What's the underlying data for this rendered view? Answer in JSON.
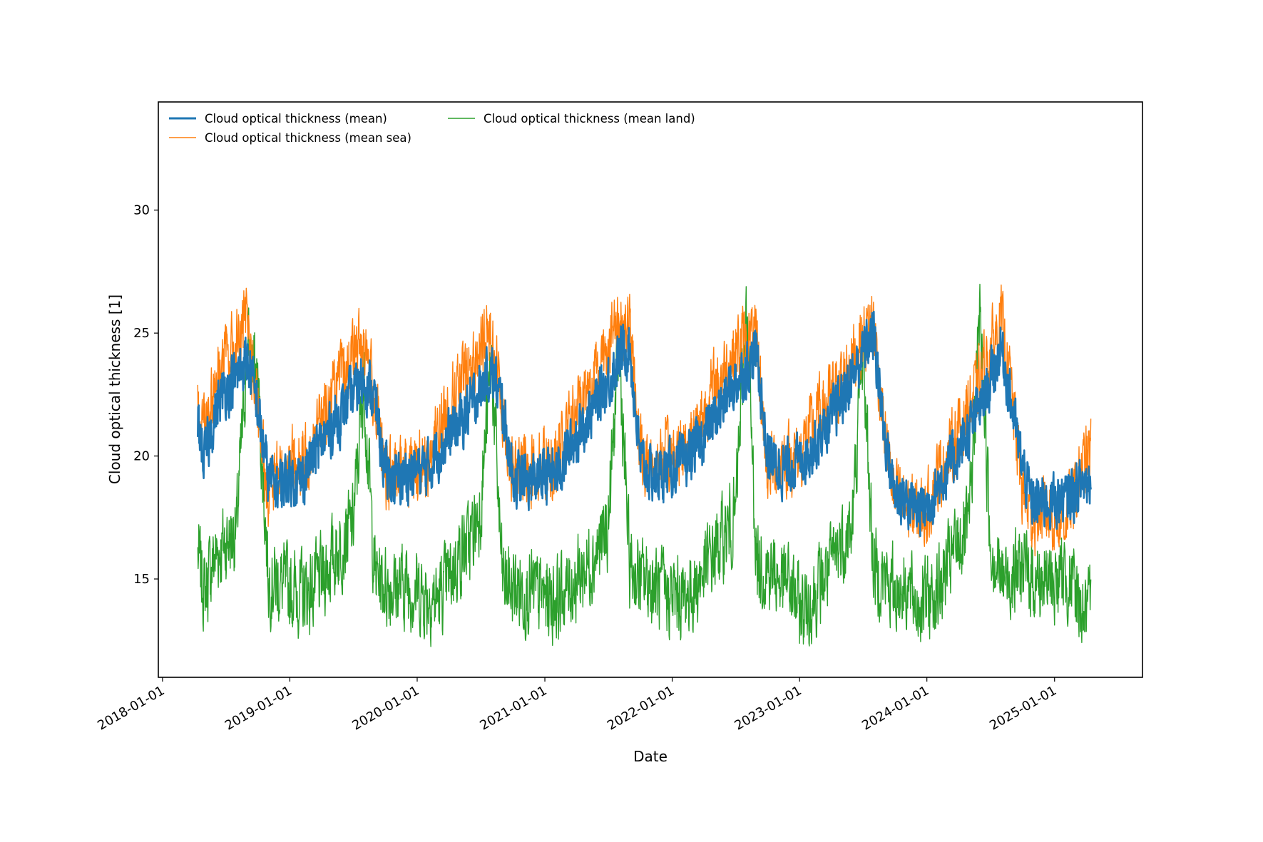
{
  "chart_data": {
    "type": "line",
    "title": "",
    "xlabel": "Date",
    "ylabel": "Cloud optical thickness [1]",
    "x_range": [
      "2017-12-20",
      "2025-09-10"
    ],
    "x_data_range": [
      "2018-04-12",
      "2025-04-15"
    ],
    "ylim": [
      11.0,
      34.4
    ],
    "x_tick_labels": [
      "2018-01-01",
      "2019-01-01",
      "2020-01-01",
      "2021-01-01",
      "2022-01-01",
      "2023-01-01",
      "2024-01-01",
      "2025-01-01"
    ],
    "y_ticks": [
      15,
      20,
      25,
      30
    ],
    "grid": false,
    "legend_position": "top-left",
    "legend": [
      {
        "label": "Cloud optical thickness (mean)",
        "color": "#1f77b4"
      },
      {
        "label": "Cloud optical thickness (mean sea)",
        "color": "#ff7f0e"
      },
      {
        "label": "Cloud optical thickness (mean land)",
        "color": "#2ca02c"
      }
    ],
    "series": [
      {
        "name": "Cloud optical thickness (mean)",
        "color": "#1f77b4",
        "x": [
          "2018-04-12",
          "2018-05-01",
          "2018-06-01",
          "2018-07-01",
          "2018-08-01",
          "2018-09-01",
          "2018-10-01",
          "2018-11-01",
          "2018-12-01",
          "2019-01-01",
          "2019-02-01",
          "2019-03-01",
          "2019-04-01",
          "2019-05-01",
          "2019-06-01",
          "2019-07-01",
          "2019-08-01",
          "2019-09-01",
          "2019-10-01",
          "2019-11-01",
          "2019-12-01",
          "2020-01-01",
          "2020-02-01",
          "2020-03-01",
          "2020-04-01",
          "2020-05-01",
          "2020-06-01",
          "2020-07-01",
          "2020-08-01",
          "2020-09-01",
          "2020-10-01",
          "2020-11-01",
          "2020-12-01",
          "2021-01-01",
          "2021-02-01",
          "2021-03-01",
          "2021-04-01",
          "2021-05-01",
          "2021-06-01",
          "2021-07-01",
          "2021-08-01",
          "2021-09-01",
          "2021-10-01",
          "2021-11-01",
          "2021-12-01",
          "2022-01-01",
          "2022-02-01",
          "2022-03-01",
          "2022-04-01",
          "2022-05-01",
          "2022-06-01",
          "2022-07-01",
          "2022-08-01",
          "2022-09-01",
          "2022-10-01",
          "2022-11-01",
          "2022-12-01",
          "2023-01-01",
          "2023-02-01",
          "2023-03-01",
          "2023-04-01",
          "2023-05-01",
          "2023-06-01",
          "2023-07-01",
          "2023-08-01",
          "2023-09-01",
          "2023-10-01",
          "2023-11-01",
          "2023-12-01",
          "2024-01-01",
          "2024-02-01",
          "2024-03-01",
          "2024-04-01",
          "2024-05-01",
          "2024-06-01",
          "2024-07-01",
          "2024-08-01",
          "2024-09-01",
          "2024-10-01",
          "2024-11-01",
          "2024-12-01",
          "2025-01-01",
          "2025-02-01",
          "2025-03-01",
          "2025-04-01",
          "2025-04-15"
        ],
        "y": [
          21.5,
          19.8,
          21.8,
          22.8,
          23.2,
          24.0,
          22.0,
          19.0,
          18.8,
          19.2,
          19.0,
          19.8,
          20.5,
          21.2,
          21.8,
          22.5,
          23.2,
          22.3,
          19.3,
          19.0,
          19.2,
          19.4,
          19.5,
          20.2,
          20.8,
          21.3,
          22.0,
          22.8,
          23.5,
          22.0,
          19.2,
          19.0,
          19.0,
          19.2,
          19.3,
          20.0,
          20.8,
          21.5,
          22.3,
          23.0,
          24.0,
          24.5,
          19.8,
          19.2,
          19.3,
          19.5,
          19.6,
          20.2,
          20.8,
          21.5,
          22.3,
          23.0,
          23.5,
          24.2,
          20.0,
          19.5,
          19.6,
          19.8,
          20.3,
          20.8,
          21.5,
          22.3,
          23.2,
          24.2,
          25.0,
          21.0,
          18.5,
          18.2,
          17.8,
          18.0,
          18.8,
          19.5,
          20.2,
          21.0,
          22.0,
          23.0,
          24.5,
          22.0,
          19.5,
          18.0,
          18.2,
          18.2,
          18.2,
          18.6,
          19.0,
          19.2
        ]
      },
      {
        "name": "Cloud optical thickness (mean sea)",
        "color": "#ff7f0e",
        "x": [
          "2018-04-12",
          "2018-05-01",
          "2018-06-01",
          "2018-07-01",
          "2018-08-01",
          "2018-09-01",
          "2018-10-01",
          "2018-11-01",
          "2018-12-01",
          "2019-01-01",
          "2019-02-01",
          "2019-03-01",
          "2019-04-01",
          "2019-05-01",
          "2019-06-01",
          "2019-07-01",
          "2019-08-01",
          "2019-09-01",
          "2019-10-01",
          "2019-11-01",
          "2019-12-01",
          "2020-01-01",
          "2020-02-01",
          "2020-03-01",
          "2020-04-01",
          "2020-05-01",
          "2020-06-01",
          "2020-07-01",
          "2020-08-01",
          "2020-09-01",
          "2020-10-01",
          "2020-11-01",
          "2020-12-01",
          "2021-01-01",
          "2021-02-01",
          "2021-03-01",
          "2021-04-01",
          "2021-05-01",
          "2021-06-01",
          "2021-07-01",
          "2021-08-01",
          "2021-09-01",
          "2021-10-01",
          "2021-11-01",
          "2021-12-01",
          "2022-01-01",
          "2022-02-01",
          "2022-03-01",
          "2022-04-01",
          "2022-05-01",
          "2022-06-01",
          "2022-07-01",
          "2022-08-01",
          "2022-09-01",
          "2022-10-01",
          "2022-11-01",
          "2022-12-01",
          "2023-01-01",
          "2023-02-01",
          "2023-03-01",
          "2023-04-01",
          "2023-05-01",
          "2023-06-01",
          "2023-07-01",
          "2023-08-01",
          "2023-09-01",
          "2023-10-01",
          "2023-11-01",
          "2023-12-01",
          "2024-01-01",
          "2024-02-01",
          "2024-03-01",
          "2024-04-01",
          "2024-05-01",
          "2024-06-01",
          "2024-07-01",
          "2024-08-01",
          "2024-09-01",
          "2024-10-01",
          "2024-11-01",
          "2024-12-01",
          "2025-01-01",
          "2025-02-01",
          "2025-03-01",
          "2025-04-01",
          "2025-04-15"
        ],
        "y": [
          22.0,
          21.5,
          23.0,
          24.0,
          24.5,
          25.5,
          21.5,
          18.5,
          19.3,
          19.8,
          19.5,
          20.5,
          21.5,
          22.5,
          23.2,
          24.0,
          24.8,
          22.5,
          19.0,
          19.3,
          19.6,
          19.7,
          19.8,
          21.0,
          22.0,
          22.8,
          23.5,
          24.3,
          25.0,
          22.0,
          19.3,
          19.5,
          19.6,
          19.8,
          19.8,
          20.8,
          21.8,
          22.8,
          23.5,
          24.5,
          25.5,
          25.2,
          20.0,
          19.7,
          19.8,
          20.0,
          20.2,
          21.0,
          21.8,
          22.8,
          23.5,
          24.3,
          24.8,
          24.5,
          19.5,
          19.8,
          19.9,
          20.0,
          21.0,
          21.8,
          22.3,
          23.0,
          24.0,
          24.8,
          25.5,
          21.0,
          18.3,
          18.0,
          17.5,
          17.8,
          19.2,
          20.0,
          21.0,
          22.0,
          23.0,
          24.3,
          25.5,
          22.5,
          18.5,
          17.5,
          17.8,
          17.5,
          17.5,
          18.5,
          19.8,
          20.3
        ]
      },
      {
        "name": "Cloud optical thickness (mean land)",
        "color": "#2ca02c",
        "x": [
          "2018-04-12",
          "2018-05-01",
          "2018-06-01",
          "2018-07-01",
          "2018-08-01",
          "2018-09-01",
          "2018-10-01",
          "2018-11-01",
          "2018-12-01",
          "2019-01-01",
          "2019-02-01",
          "2019-03-01",
          "2019-04-01",
          "2019-05-01",
          "2019-06-01",
          "2019-07-01",
          "2019-08-01",
          "2019-09-01",
          "2019-10-01",
          "2019-11-01",
          "2019-12-01",
          "2020-01-01",
          "2020-02-01",
          "2020-03-01",
          "2020-04-01",
          "2020-05-01",
          "2020-06-01",
          "2020-07-01",
          "2020-08-01",
          "2020-09-01",
          "2020-10-01",
          "2020-11-01",
          "2020-12-01",
          "2021-01-01",
          "2021-02-01",
          "2021-03-01",
          "2021-04-01",
          "2021-05-01",
          "2021-06-01",
          "2021-07-01",
          "2021-08-01",
          "2021-09-01",
          "2021-10-01",
          "2021-11-01",
          "2021-12-01",
          "2022-01-01",
          "2022-02-01",
          "2022-03-01",
          "2022-04-01",
          "2022-05-01",
          "2022-06-01",
          "2022-07-01",
          "2022-08-01",
          "2022-09-01",
          "2022-10-01",
          "2022-11-01",
          "2022-12-01",
          "2023-01-01",
          "2023-02-01",
          "2023-03-01",
          "2023-04-01",
          "2023-05-01",
          "2023-06-01",
          "2023-07-01",
          "2023-08-01",
          "2023-09-01",
          "2023-10-01",
          "2023-11-01",
          "2023-12-01",
          "2024-01-01",
          "2024-02-01",
          "2024-03-01",
          "2024-04-01",
          "2024-05-01",
          "2024-06-01",
          "2024-07-01",
          "2024-08-01",
          "2024-09-01",
          "2024-10-01",
          "2024-11-01",
          "2024-12-01",
          "2025-01-01",
          "2025-02-01",
          "2025-03-01",
          "2025-04-01",
          "2025-04-15"
        ],
        "y": [
          16.0,
          14.5,
          16.0,
          16.5,
          17.0,
          24.5,
          23.0,
          15.0,
          14.8,
          14.6,
          14.4,
          14.5,
          15.0,
          15.8,
          16.5,
          17.2,
          23.0,
          15.2,
          14.8,
          14.7,
          14.8,
          14.5,
          14.3,
          14.2,
          15.0,
          16.0,
          16.5,
          18.0,
          24.0,
          15.0,
          14.6,
          14.5,
          14.4,
          14.3,
          14.2,
          14.5,
          15.0,
          15.5,
          16.2,
          17.0,
          24.5,
          15.5,
          15.0,
          14.8,
          14.5,
          14.3,
          14.2,
          14.5,
          15.3,
          16.0,
          16.8,
          17.5,
          26.0,
          15.5,
          15.5,
          15.0,
          14.8,
          13.8,
          14.0,
          14.8,
          15.5,
          16.5,
          17.0,
          24.5,
          15.5,
          15.0,
          14.5,
          14.8,
          14.0,
          14.2,
          14.5,
          15.5,
          16.5,
          17.0,
          26.0,
          16.5,
          15.0,
          15.2,
          15.5,
          15.0,
          15.0,
          14.8,
          15.2,
          14.5,
          13.5,
          13.6
        ]
      }
    ]
  }
}
